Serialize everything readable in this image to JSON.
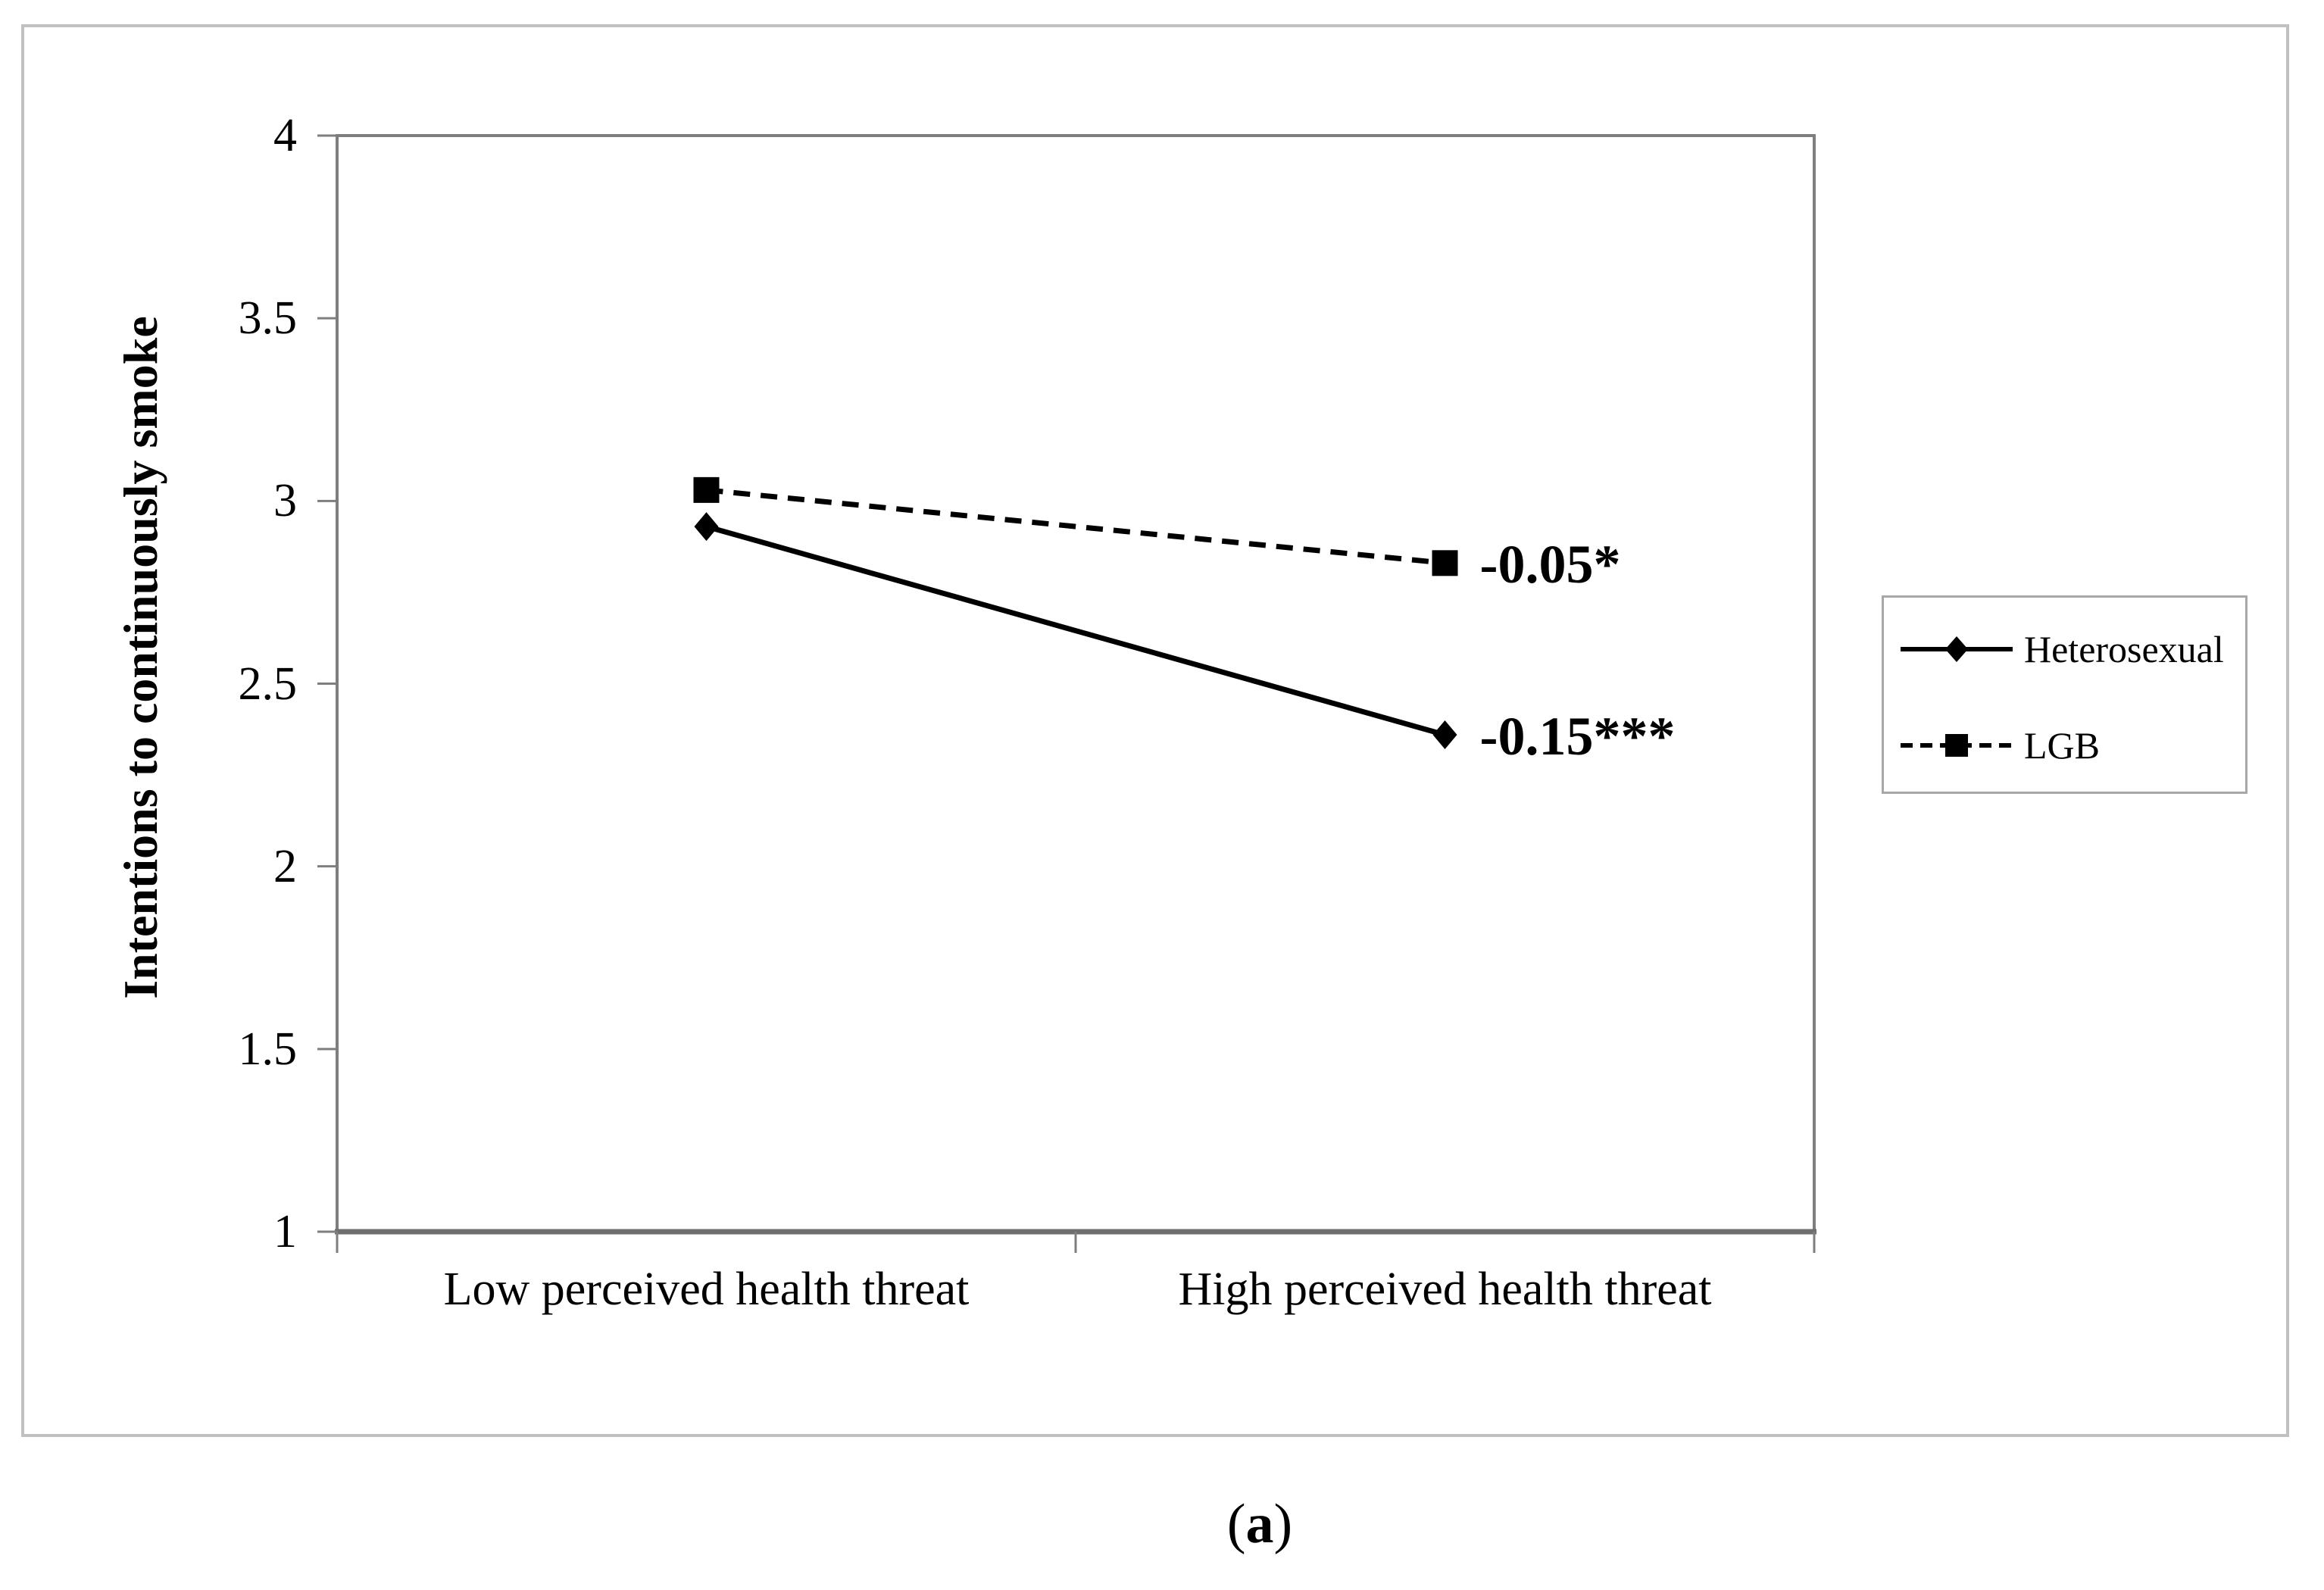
{
  "figure": {
    "caption": {
      "open": "(",
      "letter": "a",
      "close": ")"
    }
  },
  "chart_data": {
    "type": "line",
    "title": "",
    "ylabel": "Intentions to continuously smoke",
    "xlabel": "",
    "categories": [
      "Low perceived health threat",
      "High perceived health threat"
    ],
    "ylim": [
      1,
      4
    ],
    "yticks": [
      "1",
      "1.5",
      "2",
      "2.5",
      "3",
      "3.5",
      "4"
    ],
    "grid": false,
    "legend_position": "right",
    "line_color": "#000000",
    "axis_color": "#7e7e7e",
    "series": [
      {
        "name": "Heterosexual",
        "values": [
          2.93,
          2.36
        ],
        "line": "solid",
        "marker": "diamond",
        "color": "#000000"
      },
      {
        "name": "LGB",
        "values": [
          3.03,
          2.83
        ],
        "line": "dashed",
        "marker": "square",
        "color": "#000000"
      }
    ],
    "annotations": [
      {
        "text": "-0.05*",
        "series": "LGB",
        "at_category_index": 1
      },
      {
        "text": "-0.15***",
        "series": "Heterosexual",
        "at_category_index": 1
      }
    ]
  }
}
